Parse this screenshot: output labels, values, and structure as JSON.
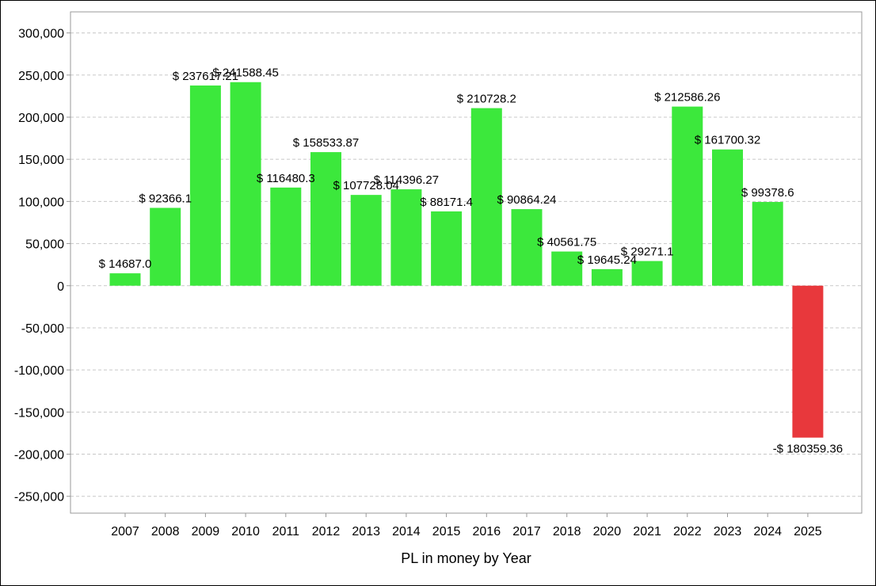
{
  "chart_data": {
    "type": "bar",
    "title": "",
    "xlabel": "PL in money by Year",
    "ylabel": "",
    "ylim": [
      -270000,
      325000
    ],
    "yticks": [
      300000,
      250000,
      200000,
      150000,
      100000,
      50000,
      0,
      -50000,
      -100000,
      -150000,
      -200000,
      -250000
    ],
    "ytick_labels": [
      "300,000",
      "250,000",
      "200,000",
      "150,000",
      "100,000",
      "50,000",
      "0",
      "-50,000",
      "-100,000",
      "-150,000",
      "-200,000",
      "-250,000"
    ],
    "grid": true,
    "categories": [
      "2007",
      "2008",
      "2009",
      "2010",
      "2011",
      "2012",
      "2013",
      "2014",
      "2015",
      "2016",
      "2017",
      "2018",
      "2020",
      "2021",
      "2022",
      "2023",
      "2024",
      "2025"
    ],
    "values": [
      14687.0,
      92366.1,
      237617.21,
      241588.45,
      116480.3,
      158533.87,
      107728.04,
      114396.27,
      88171.4,
      210728.2,
      90864.24,
      40561.75,
      19645.24,
      29271.1,
      212586.26,
      161700.32,
      99378.6,
      -180359.36
    ],
    "data_labels": [
      "$ 14687.0",
      "$ 92366.1",
      "$ 237617.21",
      "$ 241588.45",
      "$ 116480.3",
      "$ 158533.87",
      "$ 107728.04",
      "$ 114396.27",
      "$ 88171.4",
      "$ 210728.2",
      "$ 90864.24",
      "$ 40561.75",
      "$ 19645.24",
      "$ 29271.1",
      "$ 212586.26",
      "$ 161700.32",
      "$ 99378.6",
      "-$ 180359.36"
    ],
    "colors": {
      "positive": "#3ce83c",
      "negative": "#e8383c",
      "grid": "#c8c8c8",
      "axis": "#999999"
    }
  }
}
